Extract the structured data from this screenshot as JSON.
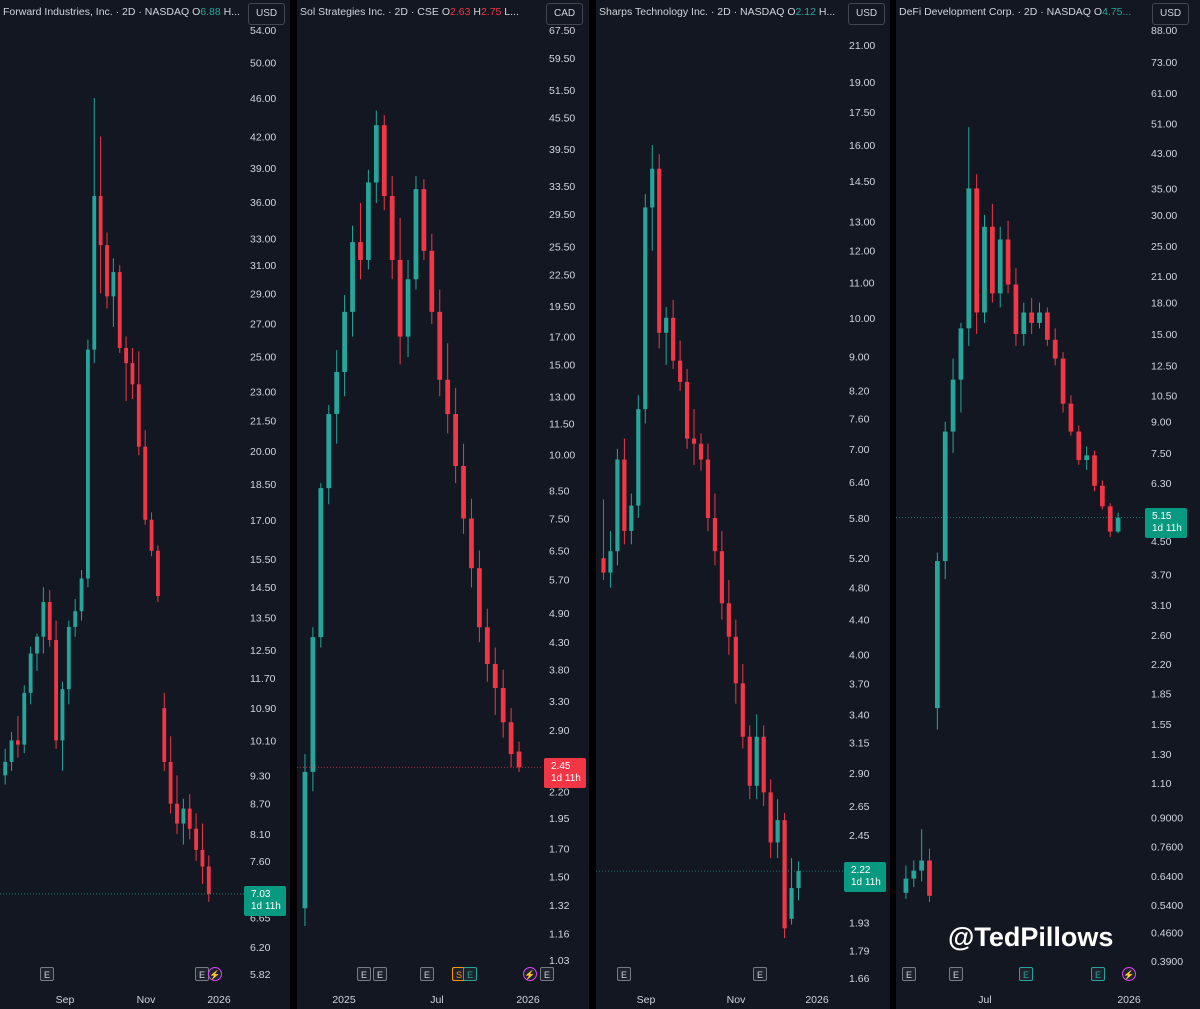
{
  "watermark": "@TedPillows",
  "colors": {
    "up": "#26a69a",
    "down": "#f23645",
    "background": "#131722",
    "text": "#d1d4dc"
  },
  "chart_data": [
    {
      "type": "candlestick",
      "header": {
        "name": "Forward Industries, Inc. · 2D · NASDAQ",
        "o_label": "O",
        "o_value": "6.88",
        "o_class": "o-up",
        "h_label": "H...",
        "h_value": ""
      },
      "currency": "USD",
      "scale": "log",
      "yticks": [
        "54.00",
        "50.00",
        "46.00",
        "42.00",
        "39.00",
        "36.00",
        "33.00",
        "31.00",
        "29.00",
        "27.00",
        "25.00",
        "23.00",
        "21.50",
        "20.00",
        "18.50",
        "17.00",
        "15.50",
        "14.50",
        "13.50",
        "12.50",
        "11.70",
        "10.90",
        "10.10",
        "9.30",
        "8.70",
        "8.10",
        "7.60",
        "6.65",
        "6.20",
        "5.82"
      ],
      "xticks": [
        "Sep",
        "Nov",
        "2026"
      ],
      "last_price": {
        "value": "7.03",
        "timer": "1d 11h",
        "dir": "up"
      },
      "events": [
        "E",
        "E",
        "⚡"
      ],
      "candles": [
        [
          9.3,
          9.9,
          9.1,
          9.6
        ],
        [
          9.6,
          10.3,
          9.4,
          10.1
        ],
        [
          10.1,
          10.7,
          9.7,
          10.0
        ],
        [
          10.0,
          11.5,
          9.8,
          11.3
        ],
        [
          11.3,
          12.6,
          11.0,
          12.4
        ],
        [
          12.4,
          13.0,
          11.9,
          12.9
        ],
        [
          12.9,
          14.5,
          12.4,
          14.0
        ],
        [
          14.0,
          14.4,
          12.6,
          12.8
        ],
        [
          12.8,
          13.4,
          9.9,
          10.1
        ],
        [
          10.1,
          11.6,
          9.4,
          11.4
        ],
        [
          11.4,
          13.4,
          11.0,
          13.2
        ],
        [
          13.2,
          14.1,
          12.9,
          13.7
        ],
        [
          13.7,
          15.1,
          13.4,
          14.8
        ],
        [
          14.8,
          26.0,
          14.5,
          25.4
        ],
        [
          25.4,
          46.0,
          24.6,
          36.5
        ],
        [
          36.5,
          42.0,
          29.0,
          32.5
        ],
        [
          32.5,
          33.5,
          28.0,
          28.8
        ],
        [
          28.8,
          31.5,
          26.8,
          30.5
        ],
        [
          30.5,
          31.0,
          25.2,
          25.5
        ],
        [
          25.5,
          26.2,
          22.5,
          24.6
        ],
        [
          24.6,
          25.5,
          22.6,
          23.4
        ],
        [
          23.4,
          25.3,
          19.8,
          20.2
        ],
        [
          20.2,
          21.0,
          16.8,
          17.0
        ],
        [
          17.0,
          17.3,
          15.6,
          15.8
        ],
        [
          15.8,
          16.0,
          14.0,
          14.2
        ],
        [
          10.9,
          11.3,
          9.4,
          9.6
        ],
        [
          9.6,
          10.2,
          8.5,
          8.7
        ],
        [
          8.7,
          9.3,
          8.1,
          8.3
        ],
        [
          8.3,
          8.8,
          7.9,
          8.6
        ],
        [
          8.6,
          8.9,
          8.0,
          8.2
        ],
        [
          8.2,
          8.5,
          7.6,
          7.8
        ],
        [
          7.8,
          8.3,
          7.2,
          7.5
        ],
        [
          7.5,
          7.7,
          6.9,
          7.03
        ]
      ]
    },
    {
      "type": "candlestick",
      "header": {
        "name": "Sol Strategies Inc. · 2D · CSE",
        "o_label": "O",
        "o_value": "2.63",
        "o_class": "o-dn",
        "h_label": "H",
        "h_value": "2.75",
        "tail": "L..."
      },
      "currency": "CAD",
      "scale": "log",
      "yticks": [
        "67.50",
        "59.50",
        "51.50",
        "45.50",
        "39.50",
        "33.50",
        "29.50",
        "25.50",
        "22.50",
        "19.50",
        "17.00",
        "15.00",
        "13.00",
        "11.50",
        "10.00",
        "8.50",
        "7.50",
        "6.50",
        "5.70",
        "4.90",
        "4.30",
        "3.80",
        "3.30",
        "2.90",
        "2.20",
        "1.95",
        "1.70",
        "1.50",
        "1.32",
        "1.16",
        "1.03"
      ],
      "xticks": [
        "2025",
        "Jul",
        "2026"
      ],
      "last_price": {
        "value": "2.45",
        "timer": "1d 11h",
        "dir": "dn"
      },
      "events": [
        "E",
        "E",
        "E",
        "S",
        "E",
        "⚡",
        "E"
      ],
      "candles": [
        [
          1.3,
          2.6,
          1.2,
          2.4
        ],
        [
          2.4,
          4.6,
          2.2,
          4.4
        ],
        [
          4.4,
          8.8,
          4.2,
          8.6
        ],
        [
          8.6,
          12.5,
          8.0,
          12.0
        ],
        [
          12.0,
          16.0,
          10.5,
          14.5
        ],
        [
          14.5,
          20.5,
          13.0,
          19.0
        ],
        [
          19.0,
          28.0,
          17.0,
          26.0
        ],
        [
          26.0,
          31.0,
          22.0,
          24.0
        ],
        [
          24.0,
          36.0,
          23.0,
          34.0
        ],
        [
          34.0,
          47.0,
          31.0,
          44.0
        ],
        [
          44.0,
          46.0,
          30.0,
          32.0
        ],
        [
          32.0,
          35.0,
          22.0,
          24.0
        ],
        [
          24.0,
          29.0,
          15.0,
          17.0
        ],
        [
          17.0,
          24.0,
          15.5,
          22.0
        ],
        [
          22.0,
          35.0,
          21.0,
          33.0
        ],
        [
          33.0,
          34.5,
          24.0,
          25.0
        ],
        [
          25.0,
          27.0,
          18.0,
          19.0
        ],
        [
          19.0,
          21.0,
          13.0,
          14.0
        ],
        [
          14.0,
          16.5,
          11.0,
          12.0
        ],
        [
          12.0,
          13.5,
          8.8,
          9.5
        ],
        [
          9.5,
          10.5,
          7.0,
          7.5
        ],
        [
          7.5,
          8.2,
          5.5,
          6.0
        ],
        [
          6.0,
          6.5,
          4.3,
          4.6
        ],
        [
          4.6,
          5.0,
          3.6,
          3.9
        ],
        [
          3.9,
          4.2,
          3.1,
          3.5
        ],
        [
          3.5,
          3.8,
          2.8,
          3.0
        ],
        [
          3.0,
          3.2,
          2.45,
          2.6
        ],
        [
          2.63,
          2.75,
          2.4,
          2.45
        ]
      ]
    },
    {
      "type": "candlestick",
      "header": {
        "name": "Sharps Technology Inc. · 2D · NASDAQ",
        "o_label": "O",
        "o_value": "2.12",
        "o_class": "o-up",
        "h_label": "H...",
        "h_value": ""
      },
      "currency": "USD",
      "scale": "log",
      "yticks": [
        "21.00",
        "19.00",
        "17.50",
        "16.00",
        "14.50",
        "13.00",
        "12.00",
        "11.00",
        "10.00",
        "9.00",
        "8.20",
        "7.60",
        "7.00",
        "6.40",
        "5.80",
        "5.20",
        "4.80",
        "4.40",
        "4.00",
        "3.70",
        "3.40",
        "3.15",
        "2.90",
        "2.65",
        "2.45",
        "1.93",
        "1.79",
        "1.66"
      ],
      "xticks": [
        "Sep",
        "Nov",
        "2026"
      ],
      "last_price": {
        "value": "2.22",
        "timer": "1d 11h",
        "dir": "up"
      },
      "events": [
        "E",
        "E"
      ],
      "candles": [
        [
          5.2,
          6.1,
          4.9,
          5.0
        ],
        [
          5.0,
          5.6,
          4.8,
          5.3
        ],
        [
          5.3,
          7.0,
          5.1,
          6.8
        ],
        [
          6.8,
          7.2,
          5.4,
          5.6
        ],
        [
          5.6,
          6.2,
          5.4,
          6.0
        ],
        [
          6.0,
          8.1,
          5.8,
          7.8
        ],
        [
          7.8,
          14.0,
          7.5,
          13.5
        ],
        [
          13.5,
          16.0,
          12.0,
          15.0
        ],
        [
          15.0,
          15.6,
          9.2,
          9.6
        ],
        [
          9.6,
          10.3,
          8.8,
          10.0
        ],
        [
          10.0,
          10.5,
          8.7,
          8.9
        ],
        [
          8.9,
          9.4,
          8.2,
          8.4
        ],
        [
          8.4,
          8.7,
          7.0,
          7.2
        ],
        [
          7.2,
          7.8,
          6.7,
          7.1
        ],
        [
          7.1,
          7.3,
          6.6,
          6.8
        ],
        [
          6.8,
          7.1,
          5.6,
          5.8
        ],
        [
          5.8,
          6.2,
          5.1,
          5.3
        ],
        [
          5.3,
          5.6,
          4.4,
          4.6
        ],
        [
          4.6,
          4.9,
          4.0,
          4.2
        ],
        [
          4.2,
          4.4,
          3.5,
          3.7
        ],
        [
          3.7,
          3.9,
          3.1,
          3.2
        ],
        [
          3.2,
          3.3,
          2.7,
          2.8
        ],
        [
          2.8,
          3.4,
          2.7,
          3.2
        ],
        [
          3.2,
          3.3,
          2.65,
          2.75
        ],
        [
          2.75,
          2.85,
          2.3,
          2.4
        ],
        [
          2.4,
          2.7,
          2.3,
          2.55
        ],
        [
          2.55,
          2.6,
          1.85,
          1.9
        ],
        [
          1.95,
          2.3,
          1.92,
          2.12
        ],
        [
          2.12,
          2.28,
          2.05,
          2.22
        ]
      ]
    },
    {
      "type": "candlestick",
      "header": {
        "name": "DeFi Development Corp. · 2D · NASDAQ",
        "o_label": "O",
        "o_value": "4.75...",
        "o_class": "o-up",
        "h_label": "",
        "h_value": ""
      },
      "currency": "USD",
      "scale": "log",
      "yticks": [
        "88.00",
        "73.00",
        "61.00",
        "51.00",
        "43.00",
        "35.00",
        "30.00",
        "25.00",
        "21.00",
        "18.00",
        "15.00",
        "12.50",
        "10.50",
        "9.00",
        "7.50",
        "6.30",
        "4.50",
        "3.70",
        "3.10",
        "2.60",
        "2.20",
        "1.85",
        "1.55",
        "1.30",
        "1.10",
        "0.9000",
        "0.7600",
        "0.6400",
        "0.5400",
        "0.4600",
        "0.3900"
      ],
      "xticks": [
        "Jul",
        "2026"
      ],
      "last_price": {
        "value": "5.15",
        "timer": "1d 11h",
        "dir": "up"
      },
      "events": [
        "E",
        "E",
        "E",
        "E",
        "⚡"
      ],
      "candles": [
        [
          0.58,
          0.68,
          0.56,
          0.63
        ],
        [
          0.63,
          0.7,
          0.6,
          0.66
        ],
        [
          0.66,
          0.84,
          0.62,
          0.7
        ],
        [
          0.7,
          0.75,
          0.55,
          0.57
        ],
        [
          1.7,
          4.2,
          1.5,
          4.0
        ],
        [
          4.0,
          9.0,
          3.6,
          8.5
        ],
        [
          8.5,
          13.0,
          7.5,
          11.5
        ],
        [
          11.5,
          16.0,
          9.5,
          15.5
        ],
        [
          15.5,
          50.0,
          14.0,
          35.0
        ],
        [
          35.0,
          38.0,
          15.0,
          17.0
        ],
        [
          17.0,
          30.0,
          16.0,
          28.0
        ],
        [
          28.0,
          32.0,
          18.0,
          19.0
        ],
        [
          19.0,
          28.0,
          17.5,
          26.0
        ],
        [
          26.0,
          29.0,
          19.0,
          20.0
        ],
        [
          20.0,
          22.0,
          14.0,
          15.0
        ],
        [
          15.0,
          18.0,
          14.0,
          17.0
        ],
        [
          17.0,
          18.5,
          15.0,
          16.0
        ],
        [
          16.0,
          18.0,
          15.5,
          17.0
        ],
        [
          17.0,
          17.5,
          14.0,
          14.5
        ],
        [
          14.5,
          15.5,
          12.5,
          13.0
        ],
        [
          13.0,
          13.5,
          9.5,
          10.0
        ],
        [
          10.0,
          10.5,
          8.3,
          8.5
        ],
        [
          8.5,
          8.8,
          7.0,
          7.2
        ],
        [
          7.2,
          7.8,
          6.8,
          7.4
        ],
        [
          7.4,
          7.6,
          6.0,
          6.2
        ],
        [
          6.2,
          6.4,
          5.4,
          5.5
        ],
        [
          5.5,
          5.6,
          4.6,
          4.75
        ],
        [
          4.75,
          5.3,
          4.7,
          5.15
        ]
      ]
    }
  ]
}
